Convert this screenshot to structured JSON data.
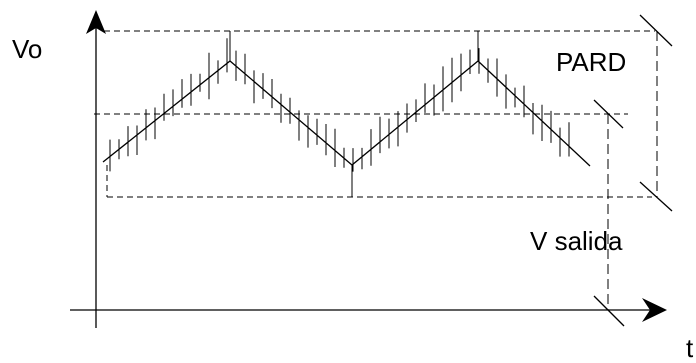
{
  "labels": {
    "y_axis": "Vo",
    "x_axis": "t",
    "ripple": "PARD",
    "output": "V salida"
  },
  "colors": {
    "stroke": "#000000",
    "background": "#ffffff"
  }
}
